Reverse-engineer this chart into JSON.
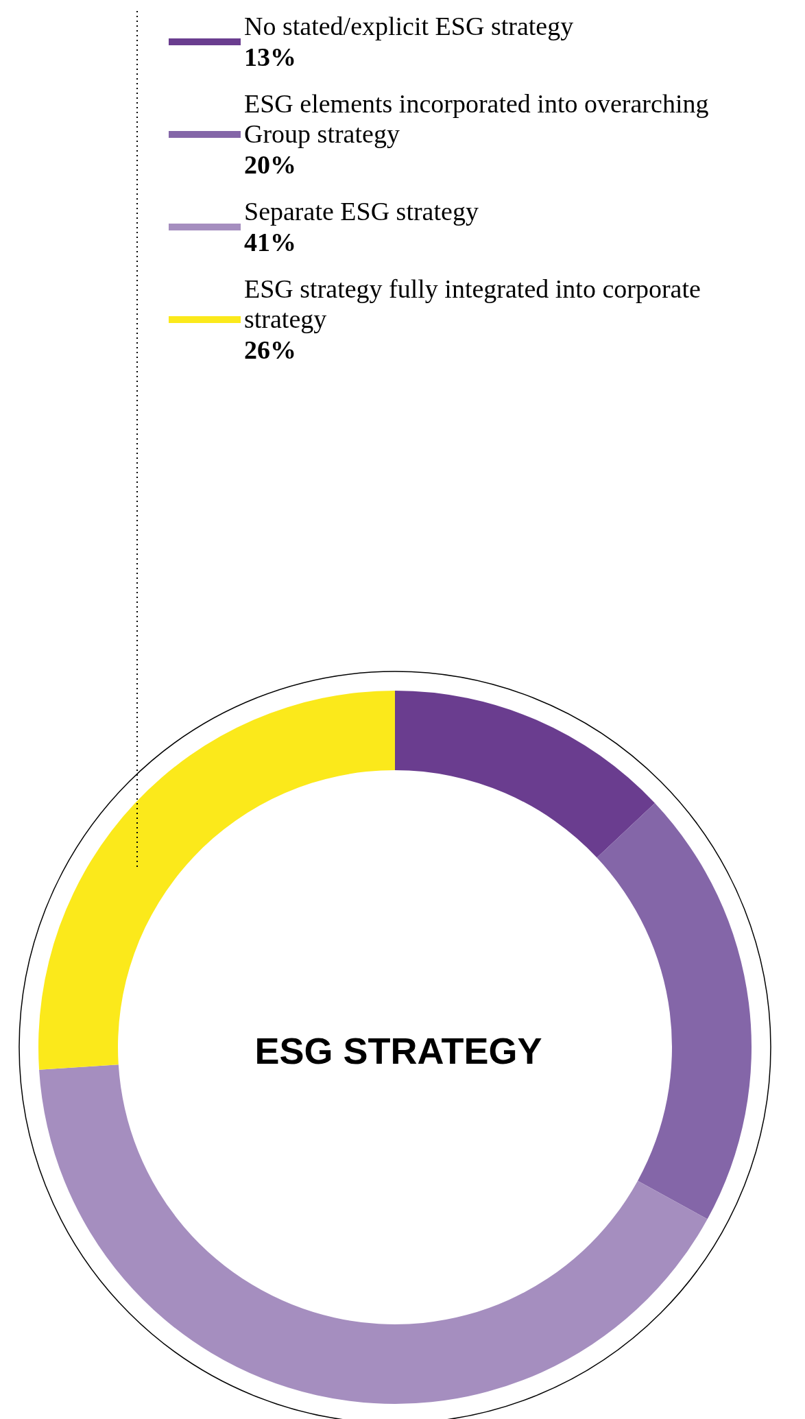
{
  "chart_data": {
    "type": "donut",
    "title": "ESG STRATEGY",
    "categories": [
      "No stated/explicit ESG strategy",
      "ESG elements incorporated into overarching Group strategy",
      "Separate ESG strategy",
      "ESG strategy fully integrated into corporate strategy"
    ],
    "values": [
      13,
      20,
      41,
      26
    ],
    "value_labels": [
      "13%",
      "20%",
      "41%",
      "26%"
    ],
    "colors": [
      "#6a3d8f",
      "#8466a8",
      "#a58ebf",
      "#fbe91b"
    ],
    "legend": "top"
  }
}
